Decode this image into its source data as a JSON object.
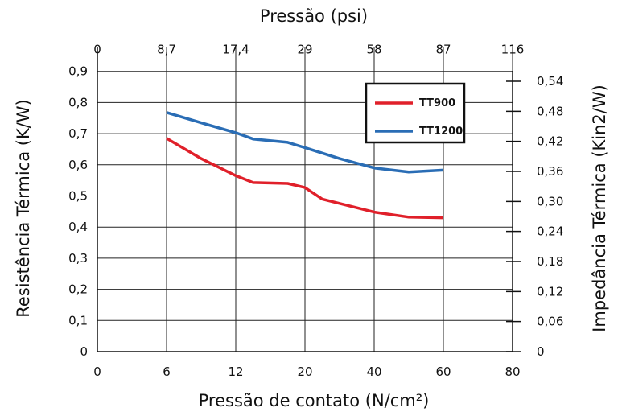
{
  "chart_data": {
    "type": "line",
    "title": "",
    "top_axis": {
      "label": "Pressão (psi)",
      "tick_labels": [
        "0",
        "8,7",
        "17,4",
        "29",
        "58",
        "87",
        "116"
      ]
    },
    "x_axis": {
      "label": "Pressão de contato (N/cm²)",
      "tick_labels": [
        "0",
        "6",
        "12",
        "20",
        "40",
        "60",
        "80"
      ]
    },
    "left_axis": {
      "label": "Resistência Térmica (K/W)",
      "tick_labels": [
        "0",
        "0,1",
        "0,2",
        "0,3",
        "0,4",
        "0,5",
        "0,6",
        "0,7",
        "0,8",
        "0,9"
      ],
      "ylim": [
        0,
        0.9
      ]
    },
    "right_axis": {
      "label": "Impedância Térmica (Kin2/W)",
      "tick_labels": [
        "0",
        "0,06",
        "0,12",
        "0,18",
        "0,24",
        "0,30",
        "0,36",
        "0,42",
        "0,48",
        "0,54"
      ]
    },
    "grid": true,
    "legend_position": "top-right",
    "series": [
      {
        "name": "TT900",
        "color": "#e0202a",
        "x": [
          6,
          9,
          12,
          14,
          18,
          20,
          25,
          40,
          50,
          60
        ],
        "y": [
          0.685,
          0.62,
          0.565,
          0.543,
          0.54,
          0.527,
          0.49,
          0.448,
          0.432,
          0.43
        ]
      },
      {
        "name": "TT1200",
        "color": "#2a6db5",
        "x": [
          6,
          9,
          12,
          14,
          18,
          20,
          30,
          40,
          50,
          60
        ],
        "y": [
          0.768,
          0.735,
          0.703,
          0.683,
          0.672,
          0.655,
          0.62,
          0.59,
          0.577,
          0.583
        ]
      }
    ]
  }
}
